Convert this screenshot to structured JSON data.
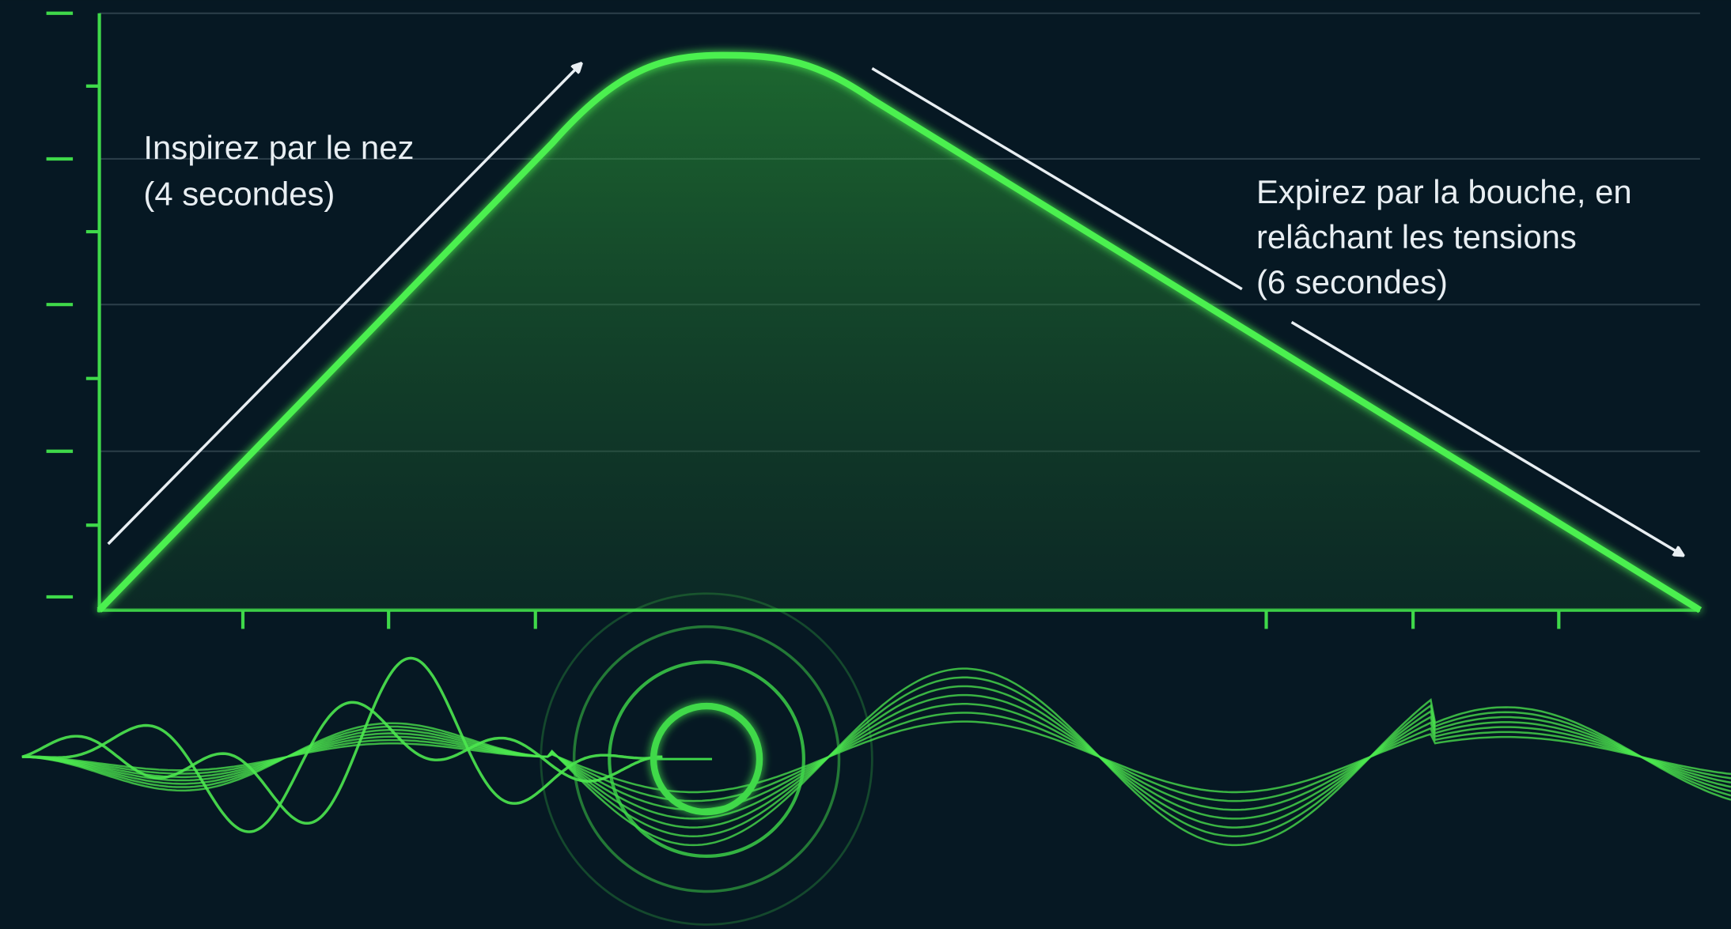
{
  "annotations": [
    {
      "lines": [
        "Inspirez par le nez",
        "(4 secondes)"
      ]
    },
    {
      "lines": [
        "Expirez par la bouche, en",
        "relâchant les tensions",
        "(6 secondes)"
      ]
    }
  ]
}
